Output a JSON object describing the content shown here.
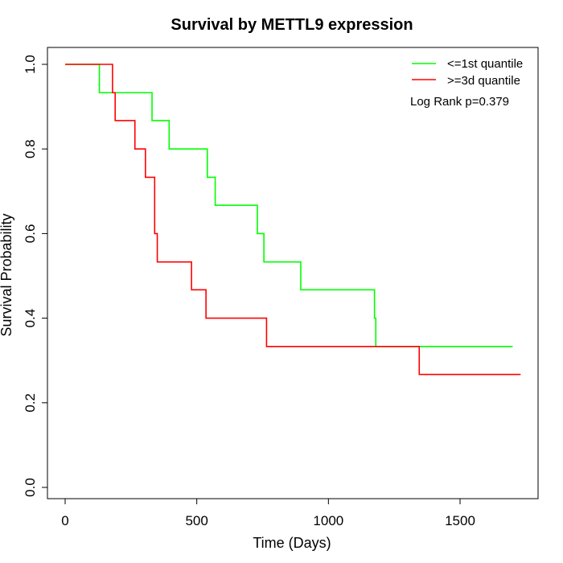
{
  "chart_data": {
    "type": "line",
    "title": "Survival by METTL9 expression",
    "xlabel": "Time (Days)",
    "ylabel": "Survival Probability",
    "xlim": [
      0,
      1780
    ],
    "ylim": [
      0,
      1.0
    ],
    "x_ticks": [
      0,
      500,
      1000,
      1500
    ],
    "y_ticks": [
      "0.0",
      "0.2",
      "0.4",
      "0.6",
      "0.8",
      "1.0"
    ],
    "grid": false,
    "legend_position": "top-right",
    "annotation": "Log Rank p=0.379",
    "series": [
      {
        "name": "<=1st quantile",
        "color": "#00ff00",
        "step": true,
        "points": [
          [
            0,
            1.0
          ],
          [
            130,
            0.933
          ],
          [
            330,
            0.867
          ],
          [
            395,
            0.8
          ],
          [
            540,
            0.733
          ],
          [
            570,
            0.667
          ],
          [
            730,
            0.6
          ],
          [
            755,
            0.533
          ],
          [
            895,
            0.467
          ],
          [
            1175,
            0.4
          ],
          [
            1180,
            0.333
          ],
          [
            1700,
            0.333
          ]
        ]
      },
      {
        "name": ">=3d quantile",
        "color": "#ff0000",
        "step": true,
        "points": [
          [
            0,
            1.0
          ],
          [
            180,
            0.933
          ],
          [
            190,
            0.867
          ],
          [
            265,
            0.8
          ],
          [
            305,
            0.733
          ],
          [
            340,
            0.6
          ],
          [
            350,
            0.533
          ],
          [
            480,
            0.467
          ],
          [
            535,
            0.4
          ],
          [
            765,
            0.333
          ],
          [
            1345,
            0.267
          ],
          [
            1730,
            0.267
          ]
        ]
      }
    ]
  }
}
